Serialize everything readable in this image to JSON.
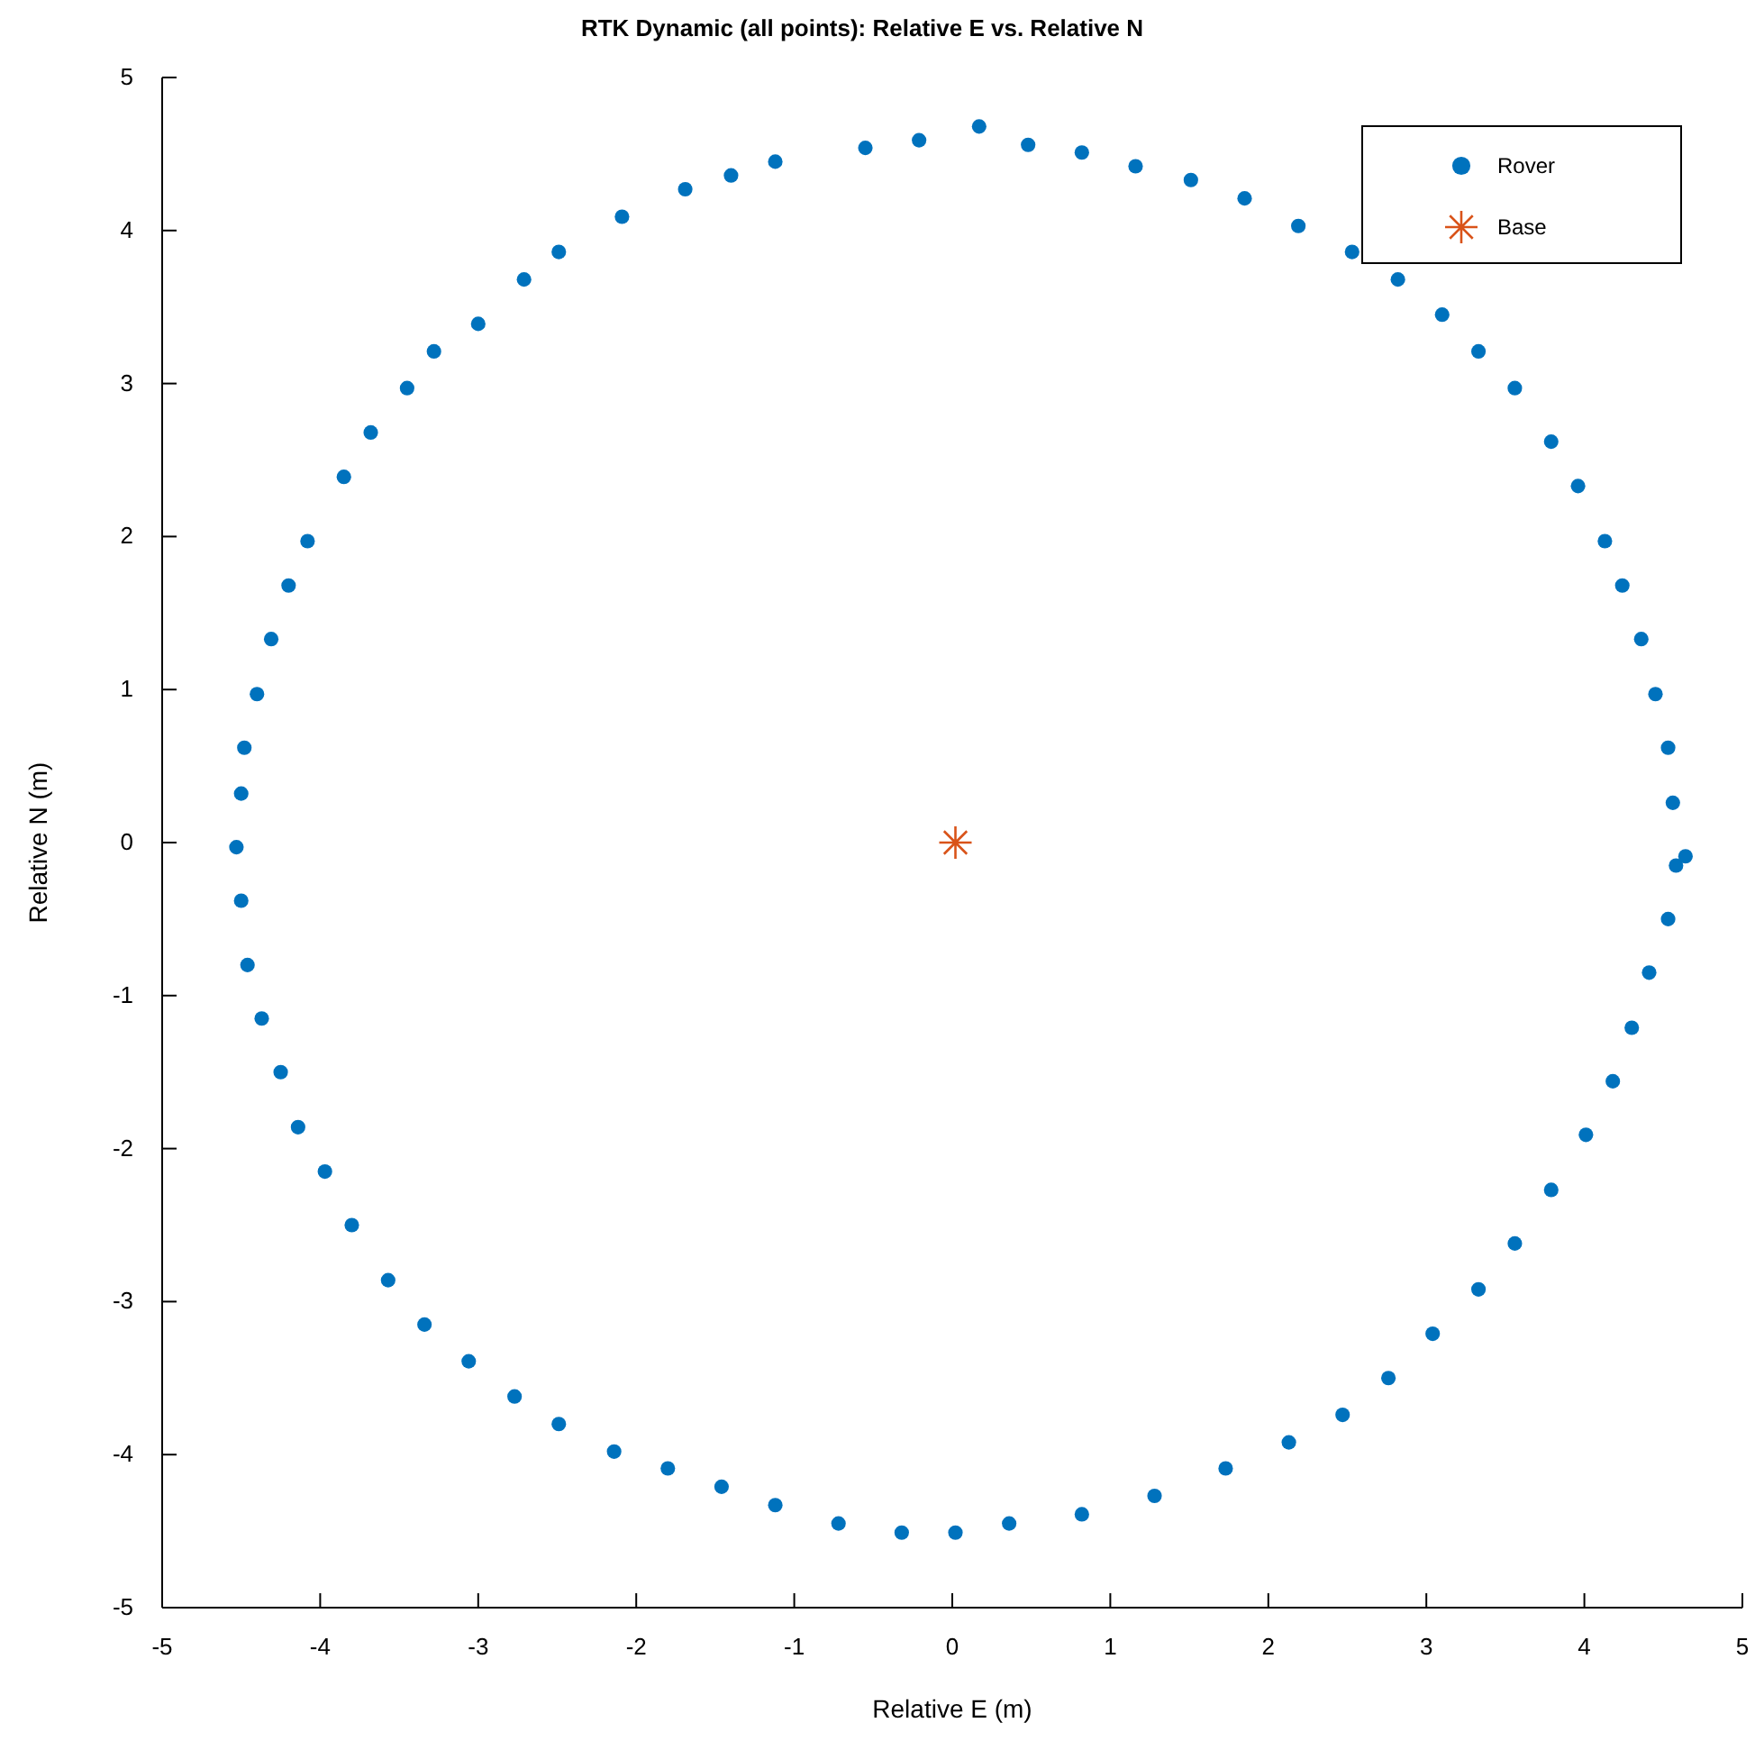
{
  "chart_data": {
    "type": "scatter",
    "title": "RTK Dynamic (all points): Relative E vs. Relative N",
    "xlabel": "Relative E (m)",
    "ylabel": "Relative N (m)",
    "xlim": [
      -5,
      5
    ],
    "ylim": [
      -5,
      5
    ],
    "xticks": [
      -5,
      -4,
      -3,
      -2,
      -1,
      0,
      1,
      2,
      3,
      4,
      5
    ],
    "yticks": [
      -5,
      -4,
      -3,
      -2,
      -1,
      0,
      1,
      2,
      3,
      4,
      5
    ],
    "grid": false,
    "legend": "top right",
    "series": [
      {
        "name": "Rover",
        "color": "#0072bd",
        "marker": "circle",
        "x": [
          0.17,
          -0.21,
          -0.55,
          -1.12,
          -1.4,
          -1.69,
          -2.09,
          -2.49,
          -2.71,
          -3.0,
          -3.28,
          -3.45,
          -3.68,
          -3.85,
          -4.08,
          -4.2,
          -4.31,
          -4.4,
          -4.48,
          -4.5,
          -4.53,
          -4.5,
          -4.46,
          -4.37,
          -4.25,
          -4.14,
          -3.97,
          -3.8,
          -3.57,
          -3.34,
          -3.06,
          -2.77,
          -2.49,
          -2.14,
          -1.8,
          -1.46,
          -1.12,
          -0.72,
          -0.32,
          0.02,
          0.36,
          0.82,
          1.28,
          1.73,
          2.13,
          2.47,
          2.76,
          3.04,
          3.33,
          3.56,
          3.79,
          4.01,
          4.18,
          4.3,
          4.41,
          4.53,
          4.58,
          4.64,
          4.56,
          4.53,
          4.45,
          4.36,
          4.24,
          4.13,
          3.96,
          3.79,
          3.56,
          3.33,
          3.1,
          2.82,
          2.53,
          2.19,
          1.85,
          1.51,
          1.16,
          0.82,
          0.48
        ],
        "values": [
          4.68,
          4.59,
          4.54,
          4.45,
          4.36,
          4.27,
          4.09,
          3.86,
          3.68,
          3.39,
          3.21,
          2.97,
          2.68,
          2.39,
          1.97,
          1.68,
          1.33,
          0.97,
          0.62,
          0.32,
          -0.03,
          -0.38,
          -0.8,
          -1.15,
          -1.5,
          -1.86,
          -2.15,
          -2.5,
          -2.86,
          -3.15,
          -3.39,
          -3.62,
          -3.8,
          -3.98,
          -4.09,
          -4.21,
          -4.33,
          -4.45,
          -4.51,
          -4.51,
          -4.45,
          -4.39,
          -4.27,
          -4.09,
          -3.92,
          -3.74,
          -3.5,
          -3.21,
          -2.92,
          -2.62,
          -2.27,
          -1.91,
          -1.56,
          -1.21,
          -0.85,
          -0.5,
          -0.15,
          -0.09,
          0.26,
          0.62,
          0.97,
          1.33,
          1.68,
          1.97,
          2.33,
          2.62,
          2.97,
          3.21,
          3.45,
          3.68,
          3.86,
          4.03,
          4.21,
          4.33,
          4.42,
          4.51,
          4.56
        ]
      },
      {
        "name": "Base",
        "color": "#d95319",
        "marker": "cross",
        "x": [
          0.02
        ],
        "values": [
          0.0
        ]
      }
    ]
  }
}
